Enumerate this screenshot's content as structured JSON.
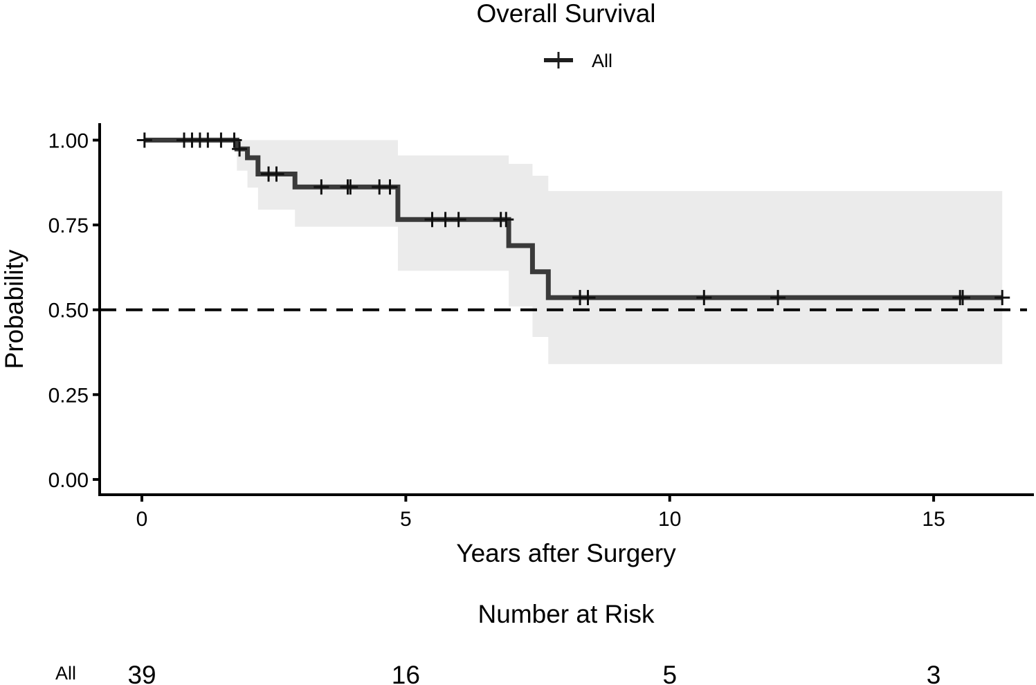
{
  "chart_data": {
    "type": "line",
    "subtype": "kaplan-meier",
    "title": "Overall Survival",
    "xlabel": "Years after Surgery",
    "ylabel": "Probability",
    "xlim": [
      -0.8,
      16.9
    ],
    "ylim": [
      -0.045,
      1.05
    ],
    "x_ticks": [
      0,
      5,
      10,
      15
    ],
    "x_tick_labels": [
      "0",
      "5",
      "10",
      "15"
    ],
    "y_ticks": [
      0,
      0.25,
      0.5,
      0.75,
      1.0
    ],
    "y_tick_labels": [
      "0.00",
      "0.25",
      "0.50",
      "0.75",
      "1.00"
    ],
    "grid": false,
    "legend": {
      "position": "top",
      "entries": [
        "All"
      ]
    },
    "reference_line": {
      "y": 0.5,
      "style": "dashed"
    },
    "colors": {
      "curve": "#3a3a3a",
      "ci_band": "#ebebeb",
      "axis": "#000000"
    },
    "series": [
      {
        "name": "All",
        "steps": [
          {
            "x": 0.05,
            "y": 1.0,
            "lower": 1.0,
            "upper": 1.0
          },
          {
            "x": 1.8,
            "y": 0.974,
            "lower": 0.91,
            "upper": 1.0
          },
          {
            "x": 2.0,
            "y": 0.948,
            "lower": 0.86,
            "upper": 1.0
          },
          {
            "x": 2.2,
            "y": 0.9,
            "lower": 0.795,
            "upper": 1.0
          },
          {
            "x": 2.9,
            "y": 0.862,
            "lower": 0.745,
            "upper": 1.0
          },
          {
            "x": 4.85,
            "y": 0.766,
            "lower": 0.615,
            "upper": 0.955
          },
          {
            "x": 6.95,
            "y": 0.689,
            "lower": 0.51,
            "upper": 0.93
          },
          {
            "x": 7.4,
            "y": 0.612,
            "lower": 0.42,
            "upper": 0.895
          },
          {
            "x": 7.7,
            "y": 0.536,
            "lower": 0.34,
            "upper": 0.85
          }
        ],
        "end_x": 16.3,
        "censored": [
          {
            "x": 0.05,
            "y": 1.0
          },
          {
            "x": 0.8,
            "y": 1.0
          },
          {
            "x": 0.95,
            "y": 1.0
          },
          {
            "x": 1.1,
            "y": 1.0
          },
          {
            "x": 1.25,
            "y": 1.0
          },
          {
            "x": 1.5,
            "y": 1.0
          },
          {
            "x": 1.75,
            "y": 1.0
          },
          {
            "x": 1.85,
            "y": 0.974
          },
          {
            "x": 2.4,
            "y": 0.9
          },
          {
            "x": 2.55,
            "y": 0.9
          },
          {
            "x": 3.4,
            "y": 0.862
          },
          {
            "x": 3.9,
            "y": 0.862
          },
          {
            "x": 3.95,
            "y": 0.862
          },
          {
            "x": 4.5,
            "y": 0.862
          },
          {
            "x": 4.7,
            "y": 0.862
          },
          {
            "x": 5.5,
            "y": 0.766
          },
          {
            "x": 5.75,
            "y": 0.766
          },
          {
            "x": 6.0,
            "y": 0.766
          },
          {
            "x": 6.8,
            "y": 0.766
          },
          {
            "x": 6.9,
            "y": 0.766
          },
          {
            "x": 8.3,
            "y": 0.536
          },
          {
            "x": 8.45,
            "y": 0.536
          },
          {
            "x": 10.65,
            "y": 0.536
          },
          {
            "x": 12.05,
            "y": 0.536
          },
          {
            "x": 15.5,
            "y": 0.536
          },
          {
            "x": 15.55,
            "y": 0.536
          },
          {
            "x": 16.3,
            "y": 0.536
          }
        ]
      }
    ],
    "risk_table": {
      "title": "Number at Risk",
      "rows": [
        {
          "label": "All",
          "times": [
            0,
            5,
            10,
            15
          ],
          "counts": [
            "39",
            "16",
            "5",
            "3"
          ]
        }
      ]
    }
  }
}
